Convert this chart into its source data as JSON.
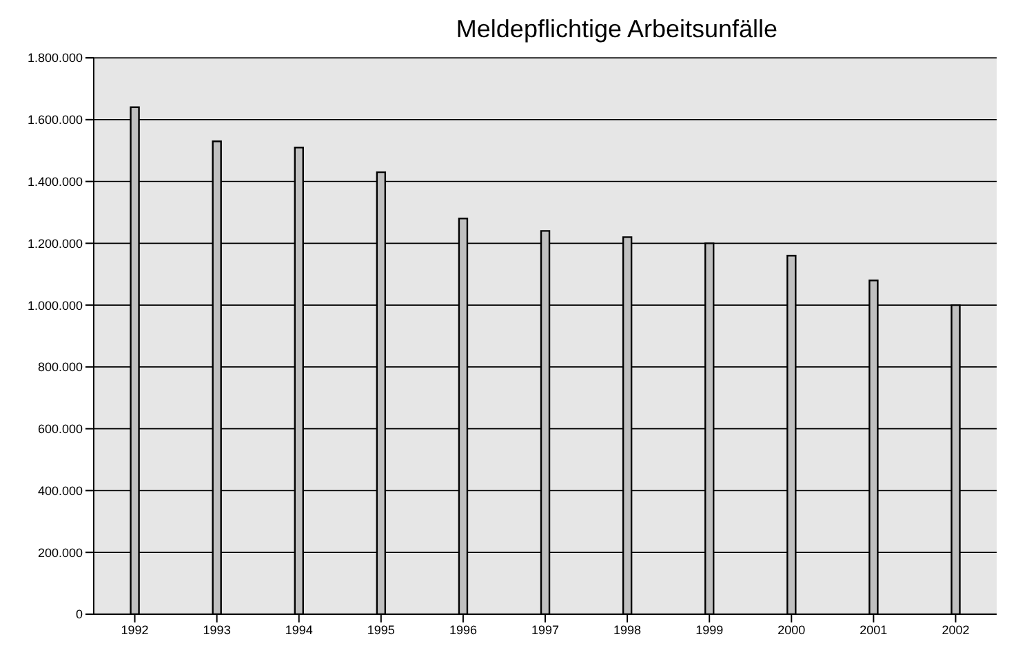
{
  "chart_data": {
    "type": "bar",
    "title": "Meldepflichtige Arbeitsunfälle",
    "categories": [
      "1992",
      "1993",
      "1994",
      "1995",
      "1996",
      "1997",
      "1998",
      "1999",
      "2000",
      "2001",
      "2002"
    ],
    "values": [
      1640000,
      1530000,
      1510000,
      1430000,
      1280000,
      1240000,
      1220000,
      1200000,
      1160000,
      1080000,
      1000000
    ],
    "color": "#c0c0c0",
    "ylim": [
      0,
      1800000
    ],
    "yticks": [
      {
        "value": 0,
        "label": "0"
      },
      {
        "value": 200000,
        "label": "200.000"
      },
      {
        "value": 400000,
        "label": "400.000"
      },
      {
        "value": 600000,
        "label": "600.000"
      },
      {
        "value": 800000,
        "label": "800.000"
      },
      {
        "value": 1000000,
        "label": "1.000.000"
      },
      {
        "value": 1200000,
        "label": "1.200.000"
      },
      {
        "value": 1400000,
        "label": "1.400.000"
      },
      {
        "value": 1600000,
        "label": "1.600.000"
      },
      {
        "value": 1800000,
        "label": "1.800.000"
      }
    ],
    "grid": "y"
  }
}
